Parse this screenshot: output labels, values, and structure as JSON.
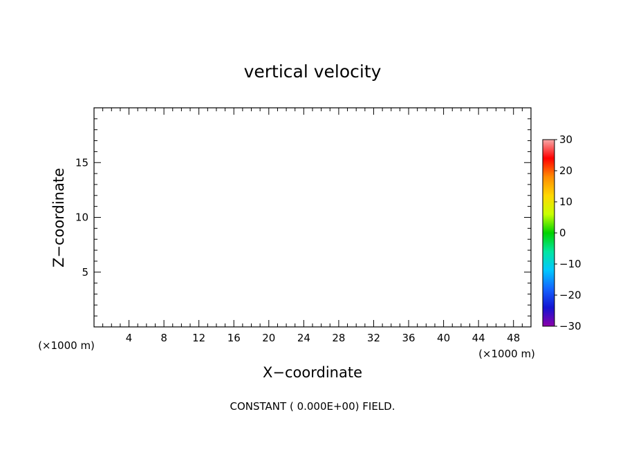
{
  "chart_data": {
    "type": "heatmap",
    "title": "vertical velocity",
    "xlabel": "X−coordinate",
    "ylabel": "Z−coordinate",
    "x_unit": "(×1000 m)",
    "z_unit": "(×1000 m)",
    "xlim": [
      0,
      50
    ],
    "ylim": [
      0,
      20
    ],
    "x_ticks": [
      4,
      8,
      12,
      16,
      20,
      24,
      28,
      32,
      36,
      40,
      44,
      48
    ],
    "x_tick_labels": [
      "4",
      "8",
      "12",
      "16",
      "20",
      "24",
      "28",
      "32",
      "36",
      "40",
      "44",
      "48"
    ],
    "y_ticks": [
      5,
      10,
      15
    ],
    "y_tick_labels": [
      "5",
      "10",
      "15"
    ],
    "field_value": 0.0,
    "annotation": "CONSTANT ( 0.000E+00) FIELD.",
    "grid": false,
    "colorbar": {
      "range": [
        -30,
        30
      ],
      "ticks": [
        30,
        20,
        10,
        0,
        -10,
        -20,
        -30
      ],
      "tick_labels": [
        "30",
        "20",
        "10",
        "0",
        "−10",
        "−20",
        "−30"
      ],
      "colors": [
        "#f7a8a8",
        "#ff0000",
        "#ff8c00",
        "#ffd800",
        "#c8ff00",
        "#00d200",
        "#00e6a0",
        "#00c8ff",
        "#1464ff",
        "#1414d2",
        "#8c00aa"
      ]
    }
  }
}
